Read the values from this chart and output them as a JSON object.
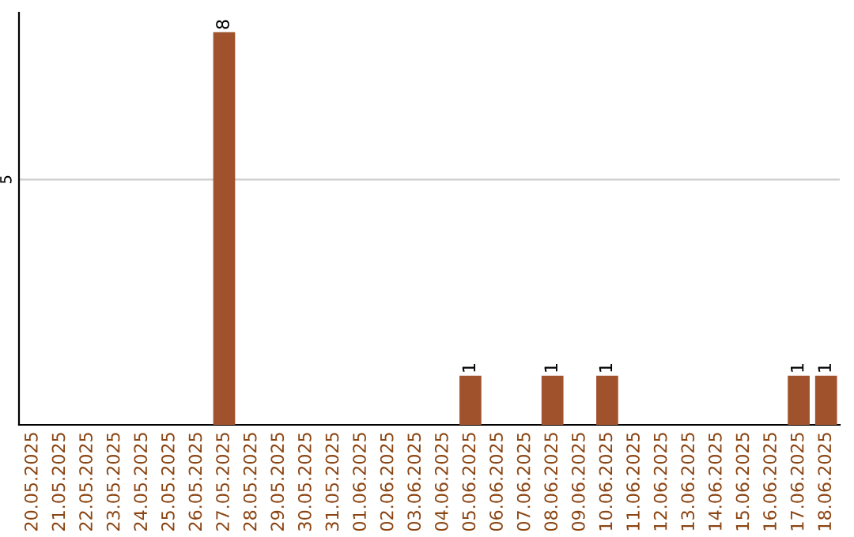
{
  "chart_data": {
    "type": "bar",
    "categories": [
      "20.05.2025",
      "21.05.2025",
      "22.05.2025",
      "23.05.2025",
      "24.05.2025",
      "25.05.2025",
      "26.05.2025",
      "27.05.2025",
      "28.05.2025",
      "29.05.2025",
      "30.05.2025",
      "31.05.2025",
      "01.06.2025",
      "02.06.2025",
      "03.06.2025",
      "04.06.2025",
      "05.06.2025",
      "06.06.2025",
      "07.06.2025",
      "08.06.2025",
      "09.06.2025",
      "10.06.2025",
      "11.06.2025",
      "12.06.2025",
      "13.06.2025",
      "14.06.2025",
      "15.06.2025",
      "16.06.2025",
      "17.06.2025",
      "18.06.2025"
    ],
    "values": [
      0,
      0,
      0,
      0,
      0,
      0,
      0,
      8,
      0,
      0,
      0,
      0,
      0,
      0,
      0,
      0,
      1,
      0,
      0,
      1,
      0,
      1,
      0,
      0,
      0,
      0,
      0,
      0,
      1,
      1
    ],
    "value_labels": [
      null,
      null,
      null,
      null,
      null,
      null,
      null,
      "8",
      null,
      null,
      null,
      null,
      null,
      null,
      null,
      null,
      "1",
      null,
      null,
      "1",
      null,
      "1",
      null,
      null,
      null,
      null,
      null,
      null,
      "1",
      "1"
    ],
    "color": "#a0522d",
    "ylim": [
      0,
      8.4
    ],
    "yticks": [
      5
    ],
    "grid": "y",
    "legend": false
  }
}
